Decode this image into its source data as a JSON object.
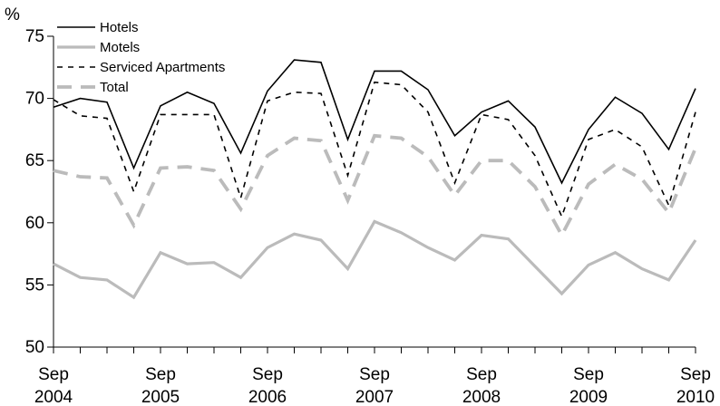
{
  "chart_data": {
    "type": "line",
    "ylabel": "%",
    "ylim": [
      50,
      75
    ],
    "yticks": [
      50,
      55,
      60,
      65,
      70,
      75
    ],
    "xticks": [
      {
        "index": 0,
        "month": "Sep",
        "year": "2004"
      },
      {
        "index": 4,
        "month": "Sep",
        "year": "2005"
      },
      {
        "index": 8,
        "month": "Sep",
        "year": "2006"
      },
      {
        "index": 12,
        "month": "Sep",
        "year": "2007"
      },
      {
        "index": 16,
        "month": "Sep",
        "year": "2008"
      },
      {
        "index": 20,
        "month": "Sep",
        "year": "2009"
      },
      {
        "index": 24,
        "month": "Sep",
        "year": "2010"
      }
    ],
    "x": [
      "Sep 2004",
      "Dec 2004",
      "Mar 2005",
      "Jun 2005",
      "Sep 2005",
      "Dec 2005",
      "Mar 2006",
      "Jun 2006",
      "Sep 2006",
      "Dec 2006",
      "Mar 2007",
      "Jun 2007",
      "Sep 2007",
      "Dec 2007",
      "Mar 2008",
      "Jun 2008",
      "Sep 2008",
      "Dec 2008",
      "Mar 2009",
      "Jun 2009",
      "Sep 2009",
      "Dec 2009",
      "Mar 2010",
      "Jun 2010",
      "Sep 2010"
    ],
    "legend_position": "top-left",
    "grid": false,
    "series": [
      {
        "name": "Hotels",
        "color": "#000000",
        "style": "solid",
        "values": [
          69.3,
          70.0,
          69.7,
          64.4,
          69.4,
          70.5,
          69.6,
          65.6,
          70.6,
          73.1,
          72.9,
          66.7,
          72.2,
          72.2,
          70.7,
          67.0,
          68.9,
          69.8,
          67.7,
          63.2,
          67.5,
          70.1,
          68.8,
          65.9,
          70.8
        ]
      },
      {
        "name": "Motels",
        "color": "#bbbbbb",
        "style": "solid-thick",
        "values": [
          56.7,
          55.6,
          55.4,
          54.0,
          57.6,
          56.7,
          56.8,
          55.6,
          58.0,
          59.1,
          58.6,
          56.3,
          60.1,
          59.2,
          58.0,
          57.0,
          59.0,
          58.7,
          56.5,
          54.3,
          56.6,
          57.6,
          56.3,
          55.4,
          58.6
        ]
      },
      {
        "name": "Serviced Apartments",
        "color": "#000000",
        "style": "dashed",
        "values": [
          69.9,
          68.6,
          68.4,
          62.5,
          68.7,
          68.7,
          68.7,
          62.0,
          69.8,
          70.5,
          70.4,
          63.8,
          71.3,
          71.1,
          68.9,
          63.2,
          68.7,
          68.3,
          65.4,
          60.5,
          66.7,
          67.5,
          66.1,
          61.4,
          68.9
        ]
      },
      {
        "name": "Total",
        "color": "#bbbbbb",
        "style": "dashed-thick",
        "values": [
          64.2,
          63.7,
          63.6,
          59.8,
          64.4,
          64.5,
          64.2,
          61.1,
          65.4,
          66.8,
          66.6,
          61.8,
          67.0,
          66.8,
          65.3,
          62.2,
          65.0,
          65.0,
          62.9,
          59.0,
          63.1,
          64.7,
          63.5,
          60.8,
          66.0
        ]
      }
    ]
  }
}
